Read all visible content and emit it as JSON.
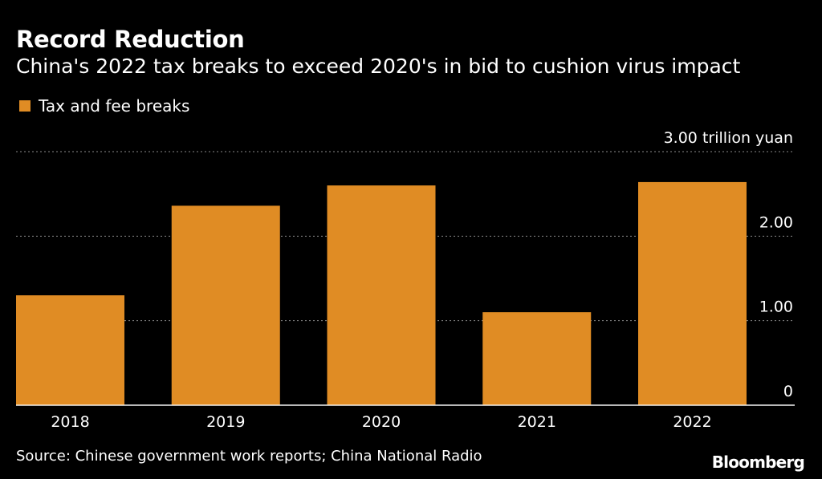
{
  "header": {
    "title": "Record Reduction",
    "subtitle": "China's 2022 tax breaks to exceed 2020's in bid to cushion virus impact"
  },
  "legend": {
    "label": "Tax and fee breaks"
  },
  "footer": {
    "source": "Source: Chinese government work reports; China National Radio",
    "brand": "Bloomberg"
  },
  "colors": {
    "bar": "#e08c24",
    "background": "#000000",
    "text": "#ffffff",
    "grid": "#8a8a8a"
  },
  "chart_data": {
    "type": "bar",
    "title": "Record Reduction",
    "subtitle": "China's 2022 tax breaks to exceed 2020's in bid to cushion virus impact",
    "categories": [
      "2018",
      "2019",
      "2020",
      "2021",
      "2022"
    ],
    "series": [
      {
        "name": "Tax and fee breaks",
        "values": [
          1.3,
          2.36,
          2.6,
          1.1,
          2.64
        ]
      }
    ],
    "ylim": [
      0,
      3
    ],
    "yticks": [
      0,
      1,
      2,
      3
    ],
    "ytick_labels": [
      "0",
      "1.00",
      "2.00",
      "3.00 trillion yuan"
    ],
    "y_axis_position": "right",
    "grid": true,
    "legend_position": "top-left"
  }
}
